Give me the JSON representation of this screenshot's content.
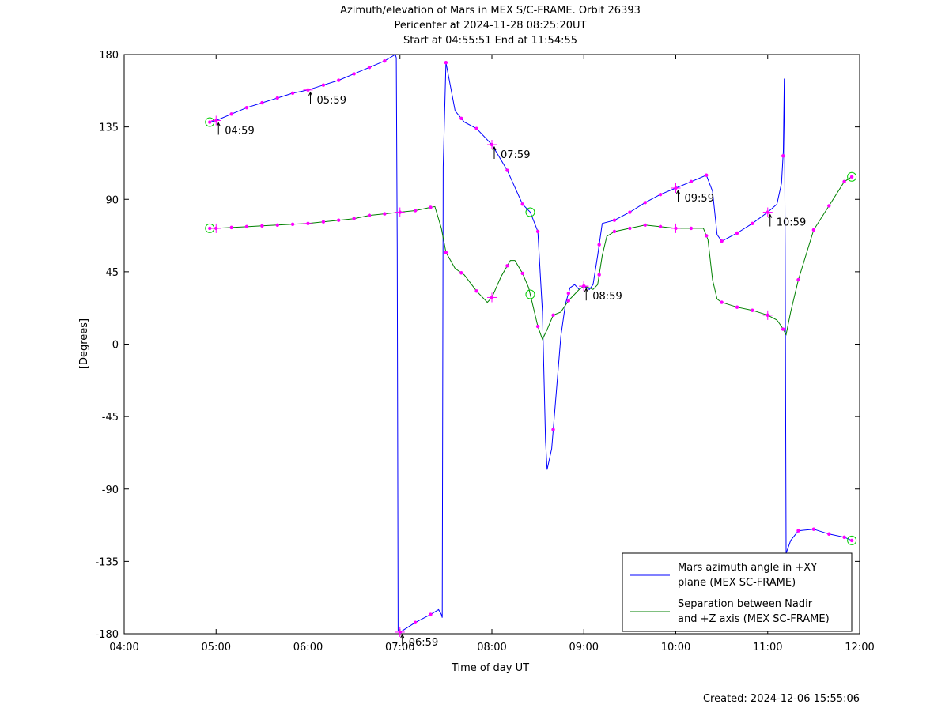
{
  "chart_data": {
    "type": "line",
    "title_lines": [
      "Azimuth/elevation of Mars in MEX S/C-FRAME.  Orbit 26393",
      "Pericenter at 2024-11-28 08:25:20UT",
      "Start at 04:55:51 End at 11:54:55"
    ],
    "xlabel": "Time of day UT",
    "ylabel": "[Degrees]",
    "xlim": [
      4.0,
      12.0
    ],
    "ylim": [
      -180,
      180
    ],
    "x_ticks": [
      {
        "v": 4,
        "label": "04:00"
      },
      {
        "v": 5,
        "label": "05:00"
      },
      {
        "v": 6,
        "label": "06:00"
      },
      {
        "v": 7,
        "label": "07:00"
      },
      {
        "v": 8,
        "label": "08:00"
      },
      {
        "v": 9,
        "label": "09:00"
      },
      {
        "v": 10,
        "label": "10:00"
      },
      {
        "v": 11,
        "label": "11:00"
      },
      {
        "v": 12,
        "label": "12:00"
      }
    ],
    "y_ticks": [
      {
        "v": 180,
        "label": "180"
      },
      {
        "v": 135,
        "label": "135"
      },
      {
        "v": 90,
        "label": "90"
      },
      {
        "v": 45,
        "label": "45"
      },
      {
        "v": 0,
        "label": "0"
      },
      {
        "v": -45,
        "label": "-45"
      },
      {
        "v": -90,
        "label": "-90"
      },
      {
        "v": -135,
        "label": "-135"
      },
      {
        "v": -180,
        "label": "-180"
      }
    ],
    "grid": false,
    "legend_position": "bottom-right",
    "series": [
      {
        "name": "Mars azimuth angle in +XY plane (MEX SC-FRAME)",
        "legend_lines": [
          "Mars azimuth angle in +XY",
          "plane (MEX SC-FRAME)"
        ],
        "color": "#0000ff",
        "x": [
          4.931,
          5.0,
          5.167,
          5.333,
          5.5,
          5.667,
          5.833,
          6.0,
          6.167,
          6.333,
          6.5,
          6.667,
          6.833,
          6.95,
          6.96,
          6.97,
          6.98,
          7.0,
          7.167,
          7.333,
          7.42,
          7.45,
          7.46,
          7.47,
          7.5,
          7.6,
          7.7,
          7.833,
          8.0,
          8.167,
          8.333,
          8.417,
          8.5,
          8.55,
          8.583,
          8.6,
          8.65,
          8.7,
          8.75,
          8.8,
          8.85,
          8.9,
          8.95,
          9.0,
          9.06,
          9.1,
          9.15,
          9.2,
          9.333,
          9.5,
          9.667,
          9.833,
          10.0,
          10.167,
          10.333,
          10.4,
          10.45,
          10.5,
          10.667,
          10.833,
          11.0,
          11.1,
          11.15,
          11.17,
          11.18,
          11.19,
          11.2,
          11.25,
          11.333,
          11.5,
          11.667,
          11.833,
          11.915
        ],
        "y": [
          138,
          139,
          143,
          147,
          150,
          153,
          156,
          158,
          161,
          164,
          168,
          172,
          176,
          180,
          178,
          60,
          -178,
          -179,
          -173,
          -168,
          -165,
          -168,
          -170,
          110,
          175,
          145,
          138,
          134,
          124,
          108,
          87,
          82,
          70,
          20,
          -60,
          -78,
          -65,
          -30,
          5,
          25,
          35,
          37,
          34,
          36,
          34,
          37,
          55,
          75,
          77,
          82,
          88,
          93,
          97,
          101,
          105,
          95,
          68,
          64,
          69,
          75,
          82,
          87,
          100,
          120,
          165,
          60,
          -130,
          -122,
          -116,
          -115,
          -118,
          -120,
          -122
        ],
        "markers_x": [
          4.931,
          5.0,
          5.167,
          5.333,
          5.5,
          5.667,
          5.833,
          6.0,
          6.167,
          6.333,
          6.5,
          6.667,
          6.833,
          7.0,
          7.167,
          7.333,
          7.5,
          7.667,
          7.833,
          8.0,
          8.167,
          8.333,
          8.5,
          8.667,
          8.833,
          9.0,
          9.167,
          9.333,
          9.5,
          9.667,
          9.833,
          10.0,
          10.167,
          10.333,
          10.5,
          10.667,
          10.833,
          11.0,
          11.167,
          11.333,
          11.5,
          11.667,
          11.833,
          11.915
        ],
        "cross_labels": [
          {
            "x": 5.0,
            "label": "04:59"
          },
          {
            "x": 6.0,
            "label": "05:59"
          },
          {
            "x": 7.0,
            "label": "06:59"
          },
          {
            "x": 8.0,
            "label": "07:59"
          },
          {
            "x": 9.0,
            "label": "08:59"
          },
          {
            "x": 10.0,
            "label": "09:59"
          },
          {
            "x": 11.0,
            "label": "10:59"
          }
        ],
        "circle_points_x": [
          4.931,
          8.417,
          11.915
        ]
      },
      {
        "name": "Separation between Nadir and +Z axis (MEX SC-FRAME)",
        "legend_lines": [
          "Separation between Nadir",
          "and +Z axis (MEX SC-FRAME)"
        ],
        "color": "#008000",
        "x": [
          4.931,
          5.0,
          5.167,
          5.333,
          5.5,
          5.667,
          5.833,
          6.0,
          6.167,
          6.333,
          6.5,
          6.667,
          6.833,
          7.0,
          7.167,
          7.333,
          7.38,
          7.45,
          7.5,
          7.6,
          7.7,
          7.833,
          7.95,
          8.0,
          8.1,
          8.2,
          8.25,
          8.333,
          8.4,
          8.5,
          8.55,
          8.6,
          8.667,
          8.75,
          8.833,
          8.95,
          9.0,
          9.06,
          9.1,
          9.15,
          9.2,
          9.25,
          9.333,
          9.5,
          9.667,
          9.833,
          10.0,
          10.167,
          10.3,
          10.35,
          10.4,
          10.45,
          10.5,
          10.667,
          10.833,
          11.0,
          11.1,
          11.15,
          11.2,
          11.25,
          11.333,
          11.5,
          11.667,
          11.833,
          11.915
        ],
        "y": [
          72,
          72,
          72.5,
          73,
          73.5,
          74,
          74.5,
          75,
          76,
          77,
          78,
          80,
          81,
          82,
          83,
          85,
          85.5,
          72,
          57,
          47,
          43,
          33,
          26,
          29,
          42,
          52,
          52,
          44,
          35,
          11,
          3,
          9,
          18,
          20,
          27,
          34,
          36,
          35,
          34,
          37,
          55,
          67,
          70,
          72,
          74,
          73,
          72,
          72,
          72,
          65,
          40,
          28,
          26,
          23,
          21,
          18,
          15,
          11,
          6,
          20,
          40,
          71,
          86,
          101,
          104
        ],
        "markers_x": [
          4.931,
          5.0,
          5.167,
          5.333,
          5.5,
          5.667,
          5.833,
          6.0,
          6.167,
          6.333,
          6.5,
          6.667,
          6.833,
          7.0,
          7.167,
          7.333,
          7.5,
          7.667,
          7.833,
          8.0,
          8.167,
          8.333,
          8.5,
          8.667,
          8.833,
          9.0,
          9.167,
          9.333,
          9.5,
          9.667,
          9.833,
          10.0,
          10.167,
          10.333,
          10.5,
          10.667,
          10.833,
          11.0,
          11.167,
          11.333,
          11.5,
          11.667,
          11.833,
          11.915
        ],
        "cross_x": [
          5.0,
          6.0,
          7.0,
          8.0,
          9.0,
          10.0,
          11.0
        ],
        "circle_points_x": [
          4.931,
          8.417,
          11.915
        ]
      }
    ],
    "marker_color": "#ff00ff",
    "circle_color": "#00cc00"
  },
  "footer": {
    "created": "Created: 2024-12-06 15:55:06"
  }
}
